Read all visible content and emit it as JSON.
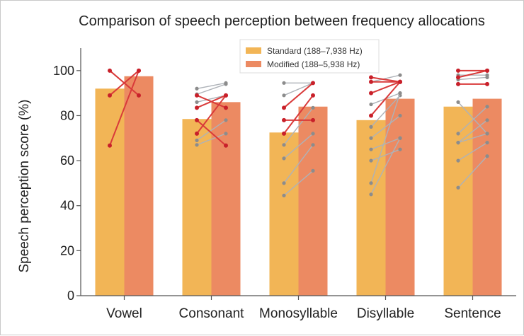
{
  "chart_data": {
    "type": "bar",
    "title": "Comparison of speech perception between frequency allocations",
    "xlabel": "",
    "ylabel": "Speech perception score (%)",
    "ylim": [
      0,
      110
    ],
    "yticks": [
      0,
      20,
      40,
      60,
      80,
      100
    ],
    "categories": [
      "Vowel",
      "Consonant",
      "Monosyllable",
      "Disyllable",
      "Sentence"
    ],
    "series": [
      {
        "name": "Standard (188–7,938 Hz)",
        "color": "#F2B556",
        "values": [
          92,
          78.5,
          72.5,
          78,
          84
        ]
      },
      {
        "name": "Modified (188–5,938 Hz)",
        "color": "#EC8A62",
        "values": [
          97.5,
          86,
          84,
          87.5,
          87.5
        ]
      }
    ],
    "individual_lines": [
      {
        "category": "Vowel",
        "highlight": true,
        "standard": 100,
        "modified": 89
      },
      {
        "category": "Vowel",
        "highlight": true,
        "standard": 89,
        "modified": 100
      },
      {
        "category": "Vowel",
        "highlight": true,
        "standard": 66.7,
        "modified": 100
      },
      {
        "category": "Consonant",
        "highlight": false,
        "standard": 92,
        "modified": 94.5
      },
      {
        "category": "Consonant",
        "highlight": false,
        "standard": 89.5,
        "modified": 94
      },
      {
        "category": "Consonant",
        "highlight": false,
        "standard": 86,
        "modified": 89
      },
      {
        "category": "Consonant",
        "highlight": false,
        "standard": 69,
        "modified": 78
      },
      {
        "category": "Consonant",
        "highlight": false,
        "standard": 67,
        "modified": 72
      },
      {
        "category": "Consonant",
        "highlight": true,
        "standard": 89,
        "modified": 83.5
      },
      {
        "category": "Consonant",
        "highlight": true,
        "standard": 83.5,
        "modified": 89
      },
      {
        "category": "Consonant",
        "highlight": true,
        "standard": 72,
        "modified": 89
      },
      {
        "category": "Consonant",
        "highlight": true,
        "standard": 78,
        "modified": 66.7
      },
      {
        "category": "Monosyllable",
        "highlight": false,
        "standard": 94.5,
        "modified": 94.5
      },
      {
        "category": "Monosyllable",
        "highlight": false,
        "standard": 89,
        "modified": 94.5
      },
      {
        "category": "Monosyllable",
        "highlight": false,
        "standard": 67,
        "modified": 83.5
      },
      {
        "category": "Monosyllable",
        "highlight": false,
        "standard": 61,
        "modified": 72
      },
      {
        "category": "Monosyllable",
        "highlight": false,
        "standard": 50,
        "modified": 67
      },
      {
        "category": "Monosyllable",
        "highlight": false,
        "standard": 44.5,
        "modified": 55.5
      },
      {
        "category": "Monosyllable",
        "highlight": true,
        "standard": 83.5,
        "modified": 94.5
      },
      {
        "category": "Monosyllable",
        "highlight": true,
        "standard": 78,
        "modified": 78
      },
      {
        "category": "Monosyllable",
        "highlight": true,
        "standard": 72,
        "modified": 89
      },
      {
        "category": "Disyllable",
        "highlight": false,
        "standard": 95,
        "modified": 98
      },
      {
        "category": "Disyllable",
        "highlight": false,
        "standard": 85,
        "modified": 90
      },
      {
        "category": "Disyllable",
        "highlight": false,
        "standard": 75,
        "modified": 89
      },
      {
        "category": "Disyllable",
        "highlight": false,
        "standard": 70,
        "modified": 80
      },
      {
        "category": "Disyllable",
        "highlight": false,
        "standard": 65,
        "modified": 70
      },
      {
        "category": "Disyllable",
        "highlight": false,
        "standard": 60,
        "modified": 65
      },
      {
        "category": "Disyllable",
        "highlight": false,
        "standard": 50,
        "modified": 90
      },
      {
        "category": "Disyllable",
        "highlight": false,
        "standard": 45,
        "modified": 70
      },
      {
        "category": "Disyllable",
        "highlight": true,
        "standard": 97,
        "modified": 95
      },
      {
        "category": "Disyllable",
        "highlight": true,
        "standard": 95,
        "modified": 95
      },
      {
        "category": "Disyllable",
        "highlight": true,
        "standard": 90,
        "modified": 95
      },
      {
        "category": "Disyllable",
        "highlight": true,
        "standard": 80,
        "modified": 95
      },
      {
        "category": "Sentence",
        "highlight": false,
        "standard": 98,
        "modified": 98
      },
      {
        "category": "Sentence",
        "highlight": false,
        "standard": 96,
        "modified": 97
      },
      {
        "category": "Sentence",
        "highlight": false,
        "standard": 86,
        "modified": 72
      },
      {
        "category": "Sentence",
        "highlight": false,
        "standard": 72,
        "modified": 84
      },
      {
        "category": "Sentence",
        "highlight": false,
        "standard": 68,
        "modified": 78
      },
      {
        "category": "Sentence",
        "highlight": false,
        "standard": 68,
        "modified": 72
      },
      {
        "category": "Sentence",
        "highlight": false,
        "standard": 60,
        "modified": 68
      },
      {
        "category": "Sentence",
        "highlight": false,
        "standard": 48,
        "modified": 62
      },
      {
        "category": "Sentence",
        "highlight": true,
        "standard": 100,
        "modified": 100
      },
      {
        "category": "Sentence",
        "highlight": true,
        "standard": 97,
        "modified": 100
      },
      {
        "category": "Sentence",
        "highlight": true,
        "standard": 94,
        "modified": 94
      }
    ],
    "colors": {
      "highlight_line": "#D93A3A",
      "highlight_point": "#C8202A",
      "gray_line": "#AEB2B8",
      "gray_point": "#8C8C8C",
      "axis": "#555555"
    },
    "legend_position": "top-center",
    "grid": false
  }
}
